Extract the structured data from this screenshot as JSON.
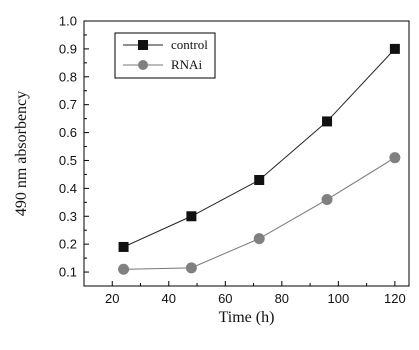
{
  "chart_data": {
    "type": "line",
    "x": [
      24,
      48,
      72,
      96,
      120
    ],
    "series": [
      {
        "name": "control",
        "values": [
          0.19,
          0.3,
          0.43,
          0.64,
          0.9
        ],
        "marker": "square",
        "color": "#111111",
        "line_color": "#222222"
      },
      {
        "name": "RNAi",
        "values": [
          0.11,
          0.115,
          0.22,
          0.36,
          0.51
        ],
        "marker": "circle",
        "color": "#808080",
        "line_color": "#777777"
      }
    ],
    "xlabel": "Time (h)",
    "ylabel": "490 nm absorbency",
    "xlim": [
      10,
      125
    ],
    "ylim": [
      0.05,
      1.0
    ],
    "xticks": [
      20,
      40,
      60,
      80,
      100,
      120
    ],
    "yticks": [
      0.1,
      0.2,
      0.3,
      0.4,
      0.5,
      0.6,
      0.7,
      0.8,
      0.9,
      1.0
    ],
    "xtick_labels": [
      "20",
      "40",
      "60",
      "80",
      "100",
      "120"
    ],
    "ytick_labels": [
      "0.1",
      "0.2",
      "0.3",
      "0.4",
      "0.5",
      "0.6",
      "0.7",
      "0.8",
      "0.9",
      "1.0"
    ],
    "grid": false,
    "legend_position": "top-left"
  }
}
